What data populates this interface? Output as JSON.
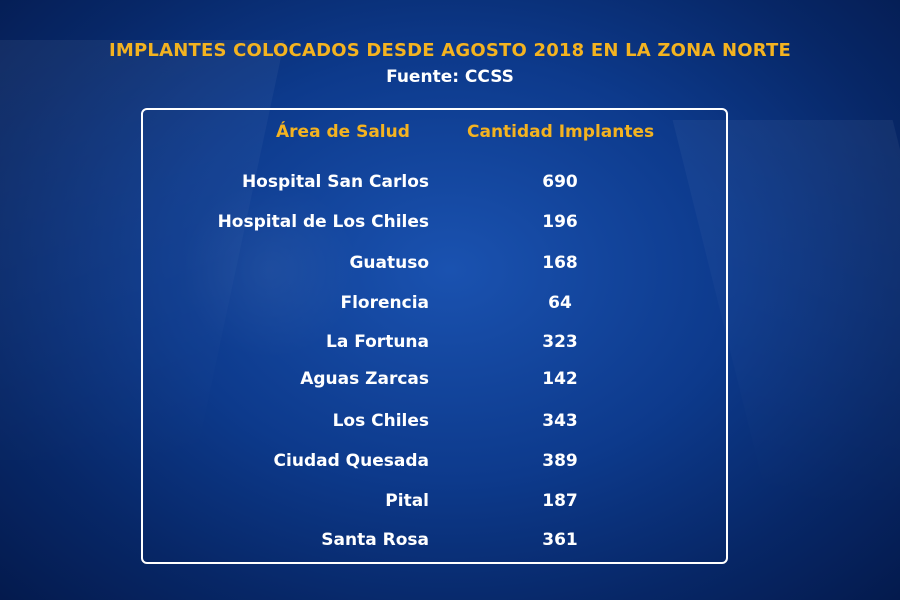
{
  "header": {
    "title": "IMPLANTES COLOCADOS DESDE AGOSTO 2018 EN LA ZONA NORTE",
    "subtitle": "Fuente: CCSS"
  },
  "chart_data": {
    "type": "table",
    "title": "IMPLANTES COLOCADOS DESDE AGOSTO 2018 EN LA ZONA NORTE",
    "subtitle": "Fuente: CCSS",
    "columns": [
      "Área de Salud",
      "Cantidad Implantes"
    ],
    "rows": [
      {
        "area": "Hospital San Carlos",
        "cantidad": "690"
      },
      {
        "area": "Hospital de Los Chiles",
        "cantidad": "196"
      },
      {
        "area": "Guatuso",
        "cantidad": "168"
      },
      {
        "area": "Florencia",
        "cantidad": "64"
      },
      {
        "area": "La Fortuna",
        "cantidad": "323"
      },
      {
        "area": "Aguas Zarcas",
        "cantidad": "142"
      },
      {
        "area": "Los Chiles",
        "cantidad": "343"
      },
      {
        "area": "Ciudad Quesada",
        "cantidad": "389"
      },
      {
        "area": "Pital",
        "cantidad": "187"
      },
      {
        "area": "Santa Rosa",
        "cantidad": "361"
      }
    ]
  },
  "colors": {
    "accent": "#f4b320",
    "text": "#ffffff",
    "background": "#0d3a8c"
  }
}
